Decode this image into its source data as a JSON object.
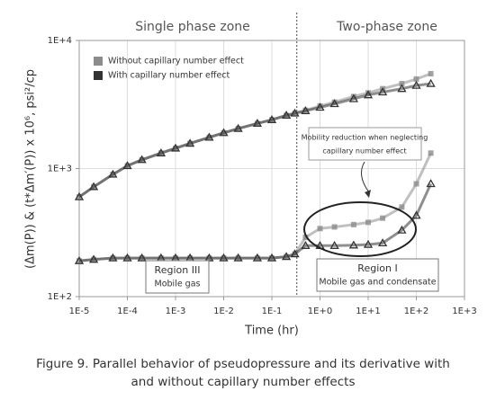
{
  "chart_data": {
    "type": "line",
    "xlabel": "Time (hr)",
    "ylabel": "(Δm(P)) & (t*Δm′(P)) x 10⁶, psi²/cp",
    "xscale": "log",
    "yscale": "log",
    "grid": true,
    "xlim": [
      1e-05,
      1000
    ],
    "ylim": [
      100,
      10000
    ],
    "xticks": [
      {
        "value": 1e-05,
        "label": "1E-5"
      },
      {
        "value": 0.0001,
        "label": "1E-4"
      },
      {
        "value": 0.001,
        "label": "1E-3"
      },
      {
        "value": 0.01,
        "label": "1E-2"
      },
      {
        "value": 0.1,
        "label": "1E-1"
      },
      {
        "value": 1,
        "label": "1E+0"
      },
      {
        "value": 10,
        "label": "1E+1"
      },
      {
        "value": 100,
        "label": "1E+2"
      },
      {
        "value": 1000,
        "label": "1E+3"
      }
    ],
    "yticks": [
      {
        "value": 100,
        "label": "1E+2"
      },
      {
        "value": 1000,
        "label": "1E+3"
      },
      {
        "value": 10000,
        "label": "1E+4"
      }
    ],
    "x": [
      1e-05,
      2e-05,
      5e-05,
      0.0001,
      0.0002,
      0.0005,
      0.001,
      0.002,
      0.005,
      0.01,
      0.02,
      0.05,
      0.1,
      0.2,
      0.3,
      0.5,
      1,
      2,
      5,
      10,
      20,
      50,
      100,
      200
    ],
    "series": [
      {
        "name": "Without capillary number effect",
        "color": "#8c8c8c",
        "marker": "square",
        "values": [
          600,
          720,
          900,
          1050,
          1170,
          1320,
          1440,
          1570,
          1750,
          1900,
          2050,
          2250,
          2400,
          2600,
          2700,
          2850,
          3080,
          3300,
          3650,
          3900,
          4200,
          4600,
          5000,
          5500
        ],
        "derivative": [
          190,
          195,
          200,
          200,
          200,
          200,
          200,
          200,
          200,
          200,
          200,
          200,
          200,
          205,
          215,
          290,
          340,
          350,
          365,
          380,
          410,
          500,
          760,
          1320
        ]
      },
      {
        "name": "With capillary number effect",
        "color": "#333333",
        "marker": "triangle",
        "values": [
          600,
          720,
          900,
          1050,
          1170,
          1320,
          1440,
          1570,
          1750,
          1900,
          2050,
          2250,
          2400,
          2600,
          2700,
          2820,
          3000,
          3200,
          3500,
          3750,
          3950,
          4200,
          4450,
          4600
        ],
        "derivative": [
          190,
          195,
          200,
          200,
          200,
          200,
          200,
          200,
          200,
          200,
          200,
          200,
          200,
          205,
          215,
          250,
          250,
          250,
          252,
          255,
          262,
          330,
          430,
          760
        ]
      }
    ],
    "zone_boundary": 0.33,
    "zones": [
      "Single phase zone",
      "Two-phase zone"
    ],
    "note": [
      "Mobility reduction when neglecting",
      "capillary number effect"
    ],
    "regions": [
      {
        "title": "Region III",
        "text": "Mobile gas"
      },
      {
        "title": "Region I",
        "text": "Mobile gas and condensate"
      }
    ],
    "caption": [
      "Figure 9. Parallel behavior of pseudopressure and its derivative with",
      "and without capillary number effects"
    ]
  }
}
